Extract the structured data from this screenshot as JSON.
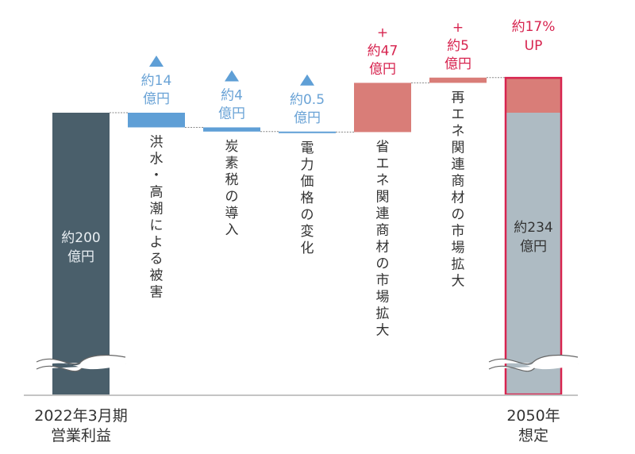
{
  "chart_data": {
    "type": "waterfall",
    "title": "",
    "unit": "億円",
    "colors": {
      "base": "#4a5f6b",
      "decrease": "#5f9fd6",
      "increase": "#d97d78",
      "final_base": "#aebbc3",
      "final_border": "#d7244f",
      "decrease_label": "#6aa3d6",
      "increase_label": "#d7244f"
    },
    "axis_break": true,
    "bars": [
      {
        "id": "start",
        "kind": "total",
        "value": 200,
        "value_label": [
          "約200",
          "億円"
        ],
        "category": [
          "2022年3月期",
          "営業利益"
        ]
      },
      {
        "id": "flood",
        "kind": "decrease",
        "value": -14,
        "symbol": "▲",
        "value_label": [
          "約14",
          "億円"
        ],
        "category_vertical": "洪水・高潮による被害"
      },
      {
        "id": "carbon-tax",
        "kind": "decrease",
        "value": -4,
        "symbol": "▲",
        "value_label": [
          "約4",
          "億円"
        ],
        "category_vertical": "炭素税の導入"
      },
      {
        "id": "power-price",
        "kind": "decrease",
        "value": -0.5,
        "symbol": "▲",
        "value_label": [
          "約0.5",
          "億円"
        ],
        "category_vertical": "電力価格の変化"
      },
      {
        "id": "energy-saving",
        "kind": "increase",
        "value": 47,
        "symbol": "+",
        "value_label": [
          "約47",
          "億円"
        ],
        "category_vertical": "省エネ関連商材の市場拡大"
      },
      {
        "id": "renewable",
        "kind": "increase",
        "value": 5,
        "symbol": "+",
        "value_label": [
          "約5",
          "億円"
        ],
        "category_vertical": "再エネ関連商材の市場拡大"
      },
      {
        "id": "end",
        "kind": "total",
        "value": 234,
        "value_label": [
          "約234",
          "億円"
        ],
        "top_label": [
          "約17%",
          "UP"
        ],
        "category": [
          "2050年",
          "想定"
        ]
      }
    ]
  }
}
